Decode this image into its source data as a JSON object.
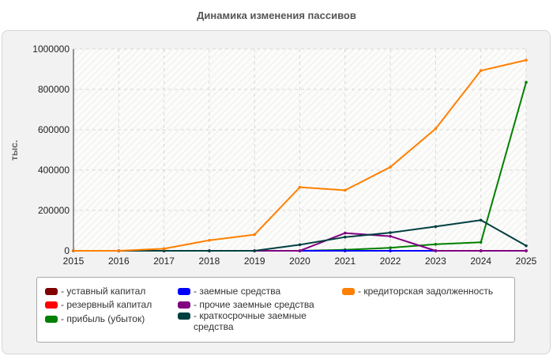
{
  "title": "Динамика изменения пассивов",
  "chart_data": {
    "type": "line",
    "title": "Динамика изменения пассивов",
    "xlabel": "",
    "ylabel": "тыс.",
    "x": [
      "2015",
      "2016",
      "2017",
      "2018",
      "2019",
      "2020",
      "2021",
      "2022",
      "2023",
      "2024",
      "2025"
    ],
    "ylim": [
      0,
      1000000
    ],
    "yticks": [
      "0",
      "200000",
      "400000",
      "600000",
      "800000",
      "1000000"
    ],
    "grid": true,
    "legend_position": "bottom",
    "series": [
      {
        "name": "- уставный капитал",
        "color": "#7f0000",
        "values": [
          0,
          0,
          0,
          0,
          0,
          0,
          0,
          0,
          0,
          0,
          0
        ]
      },
      {
        "name": "- резервный капитал",
        "color": "#ff0000",
        "values": [
          0,
          0,
          0,
          0,
          0,
          0,
          0,
          0,
          0,
          0,
          0
        ]
      },
      {
        "name": "- прибыль (убыток)",
        "color": "#008000",
        "values": [
          0,
          0,
          0,
          0,
          0,
          0,
          5000,
          15000,
          32000,
          42000,
          835000
        ]
      },
      {
        "name": "- заемные средства",
        "color": "#0000ff",
        "values": [
          0,
          0,
          0,
          0,
          0,
          0,
          0,
          0,
          0,
          0,
          0
        ]
      },
      {
        "name": "- прочие заемные средства",
        "color": "#800080",
        "values": [
          0,
          0,
          0,
          0,
          0,
          0,
          88000,
          72000,
          0,
          0,
          0
        ]
      },
      {
        "name": "- краткосрочные заемные средства",
        "color": "#004040",
        "values": [
          0,
          0,
          0,
          0,
          0,
          30000,
          68000,
          90000,
          120000,
          152000,
          25000
        ]
      },
      {
        "name": "- кредиторская задолженность",
        "color": "#ff8000",
        "values": [
          0,
          0,
          10000,
          52000,
          80000,
          315000,
          300000,
          415000,
          605000,
          893000,
          945000
        ]
      }
    ]
  }
}
